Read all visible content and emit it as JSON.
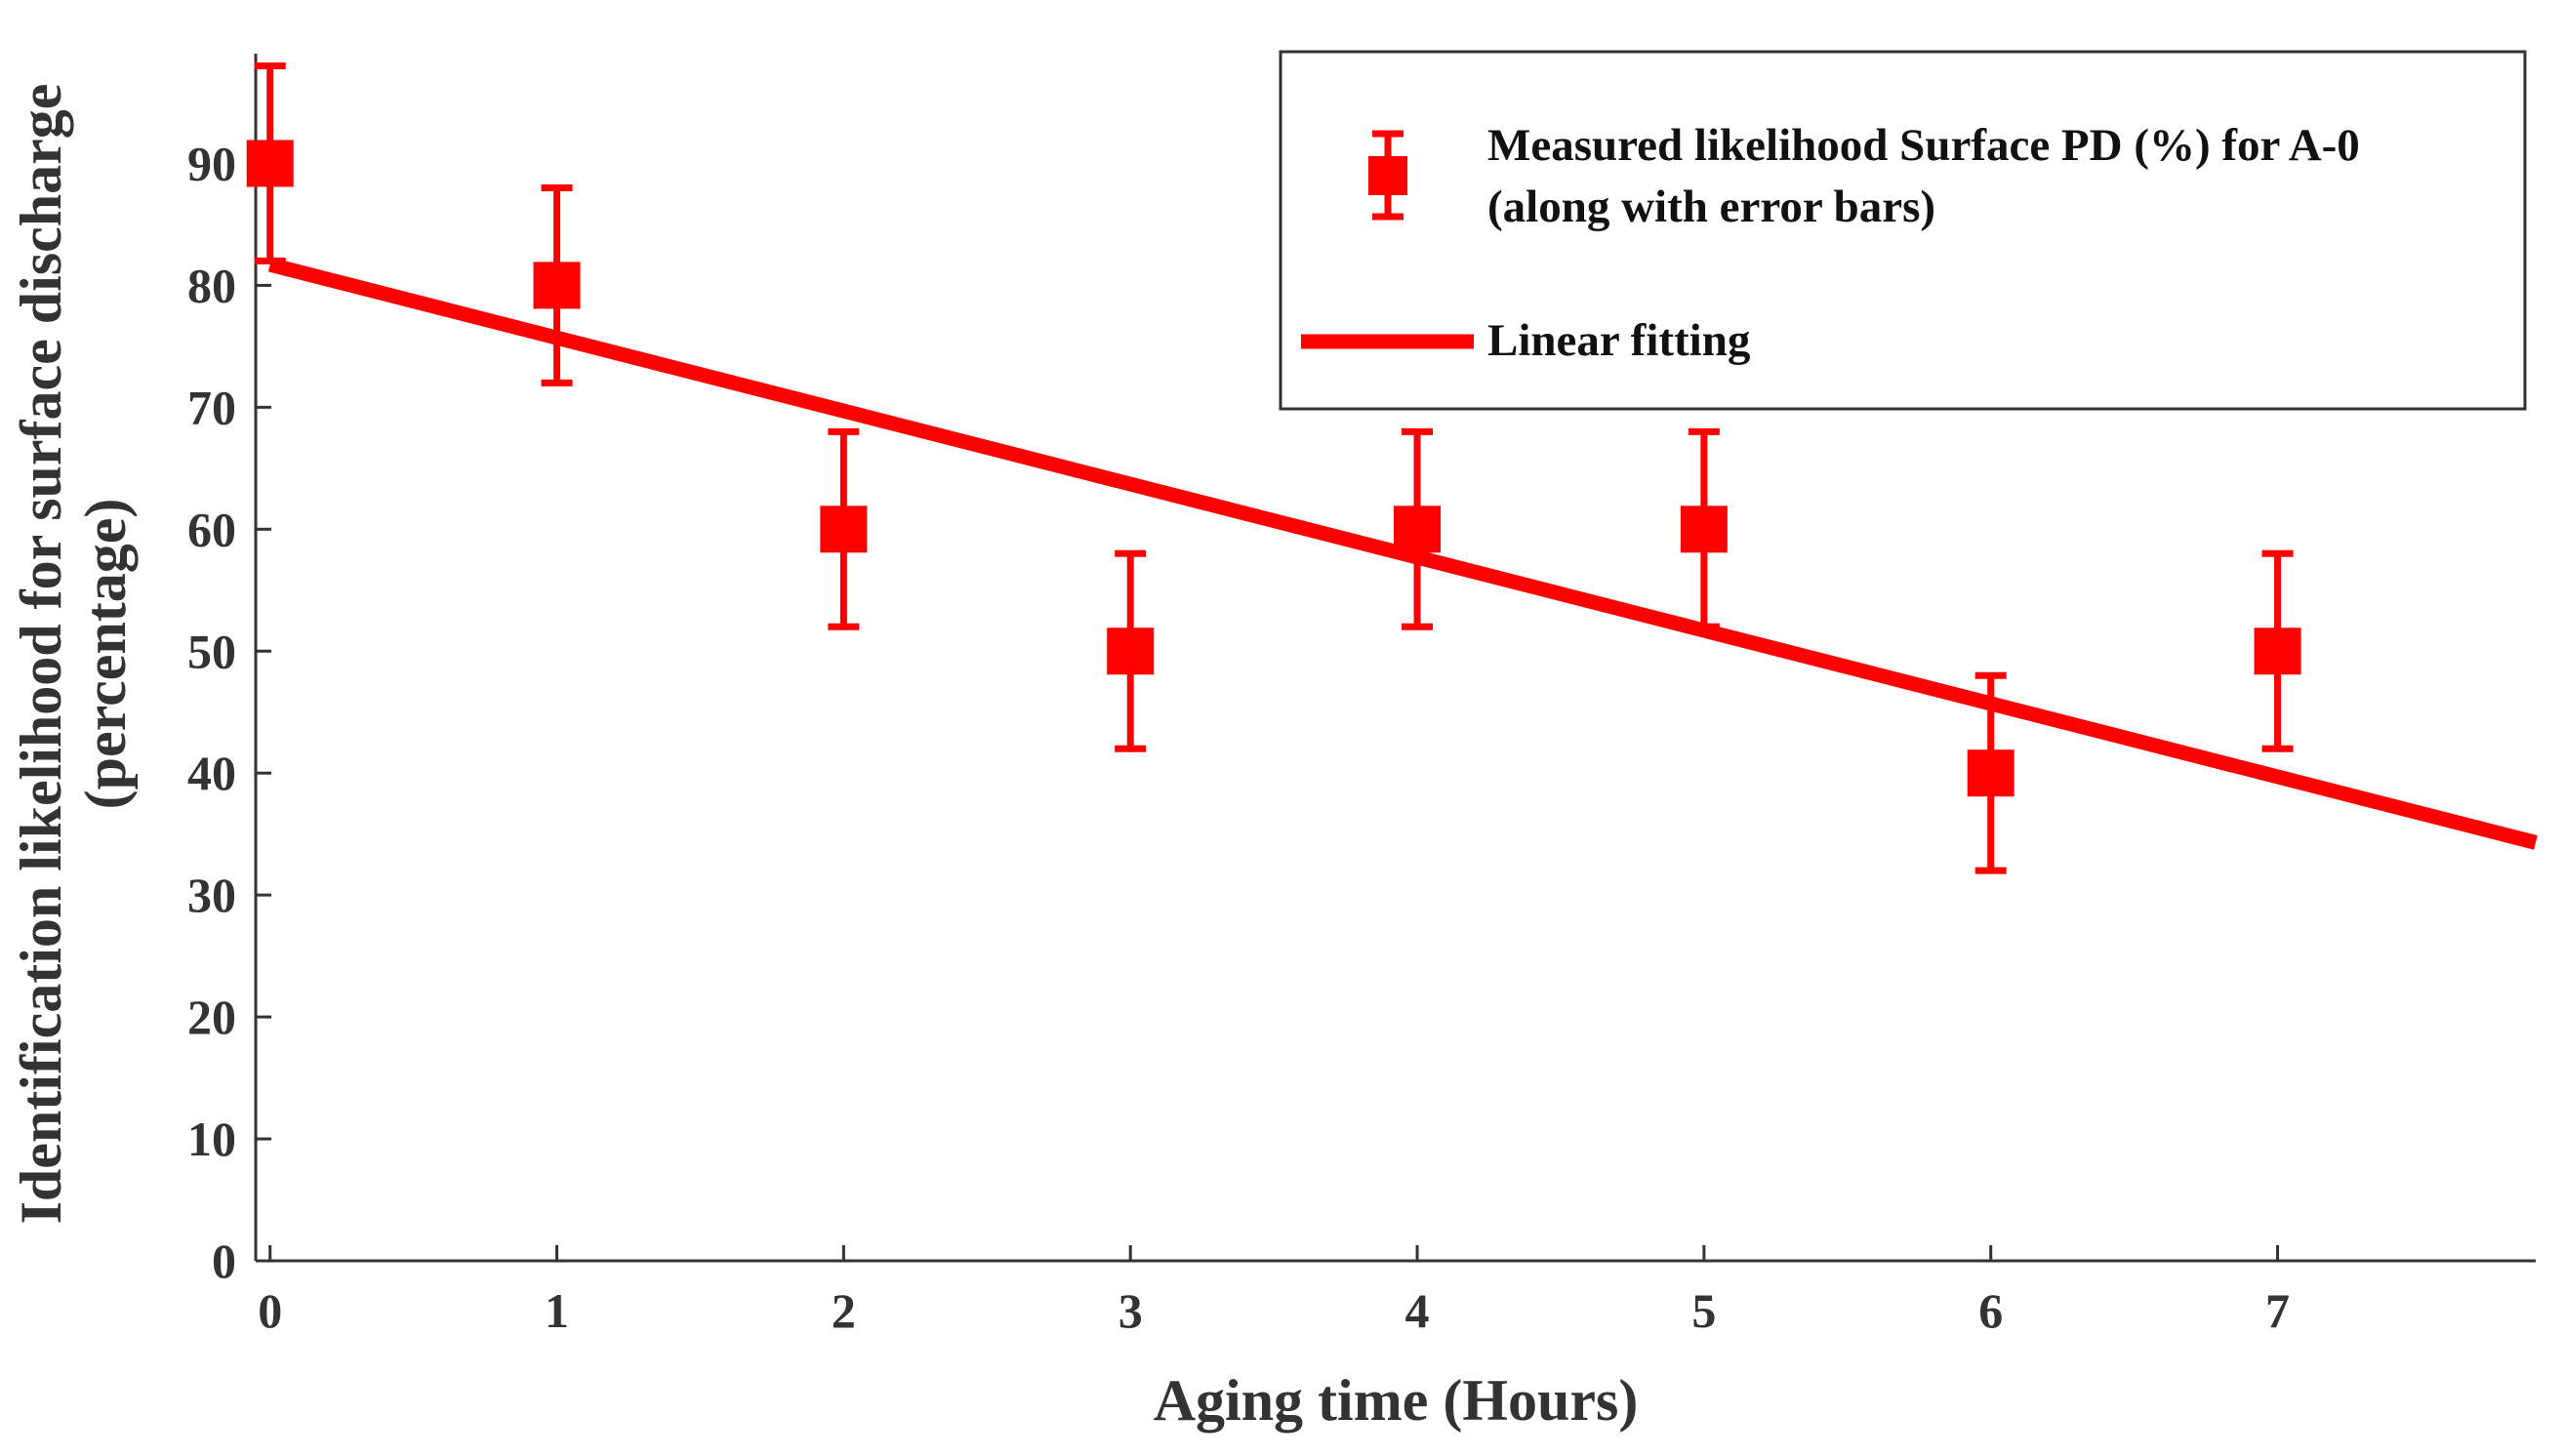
{
  "chart_data": {
    "type": "scatter",
    "title": "",
    "xlabel": "Aging time (Hours)",
    "ylabel_line1": "Identification likelihood for surface discharge",
    "ylabel_line2": "(percentage)",
    "xlim": [
      -0.05,
      7.9
    ],
    "ylim": [
      0,
      99
    ],
    "xticks": [
      0,
      1,
      2,
      3,
      4,
      5,
      6,
      7
    ],
    "yticks": [
      0,
      10,
      20,
      30,
      40,
      50,
      60,
      70,
      80,
      90
    ],
    "grid": false,
    "legend_position": "top-right",
    "series": [
      {
        "name": "Measured likelihood Surface PD (%) for A-0",
        "name_line2": "(along with error bars)",
        "kind": "errorbar",
        "color": "#ff0000",
        "x": [
          0,
          1,
          2,
          3,
          4,
          5,
          6,
          7
        ],
        "y": [
          90,
          80,
          60,
          50,
          60,
          60,
          40,
          50
        ],
        "error": [
          8,
          8,
          8,
          8,
          8,
          8,
          8,
          8
        ]
      },
      {
        "name": "Linear fitting",
        "kind": "line",
        "color": "#ff0000",
        "x": [
          0,
          7.9
        ],
        "y": [
          81.7,
          34.3
        ]
      }
    ]
  }
}
